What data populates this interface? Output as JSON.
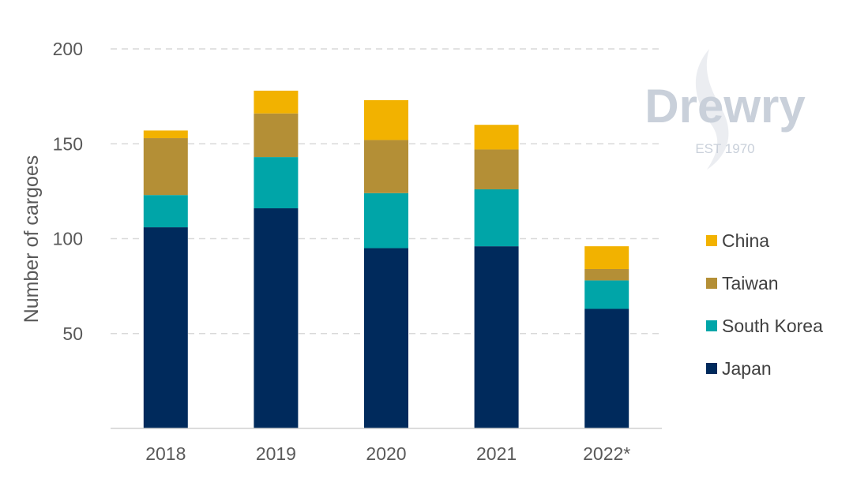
{
  "watermark": {
    "brand": "Drewry",
    "tagline": "EST 1970",
    "color": "#c9d0da"
  },
  "chart_data": {
    "type": "bar",
    "stacked": true,
    "categories": [
      "2018",
      "2019",
      "2020",
      "2021",
      "2022*"
    ],
    "series": [
      {
        "name": "Japan",
        "color": "#002a5c",
        "values": [
          106,
          116,
          95,
          96,
          63
        ]
      },
      {
        "name": "South Korea",
        "color": "#00a5a8",
        "values": [
          17,
          27,
          29,
          30,
          15
        ]
      },
      {
        "name": "Taiwan",
        "color": "#b48f36",
        "values": [
          30,
          23,
          28,
          21,
          6
        ]
      },
      {
        "name": "China",
        "color": "#f2b200",
        "values": [
          4,
          12,
          21,
          13,
          12
        ]
      }
    ],
    "title": "",
    "xlabel": "",
    "ylabel": "Number of cargoes",
    "ylim": [
      0,
      200
    ],
    "yticks": [
      50,
      100,
      150,
      200
    ],
    "grid": true,
    "legend_position": "right"
  }
}
